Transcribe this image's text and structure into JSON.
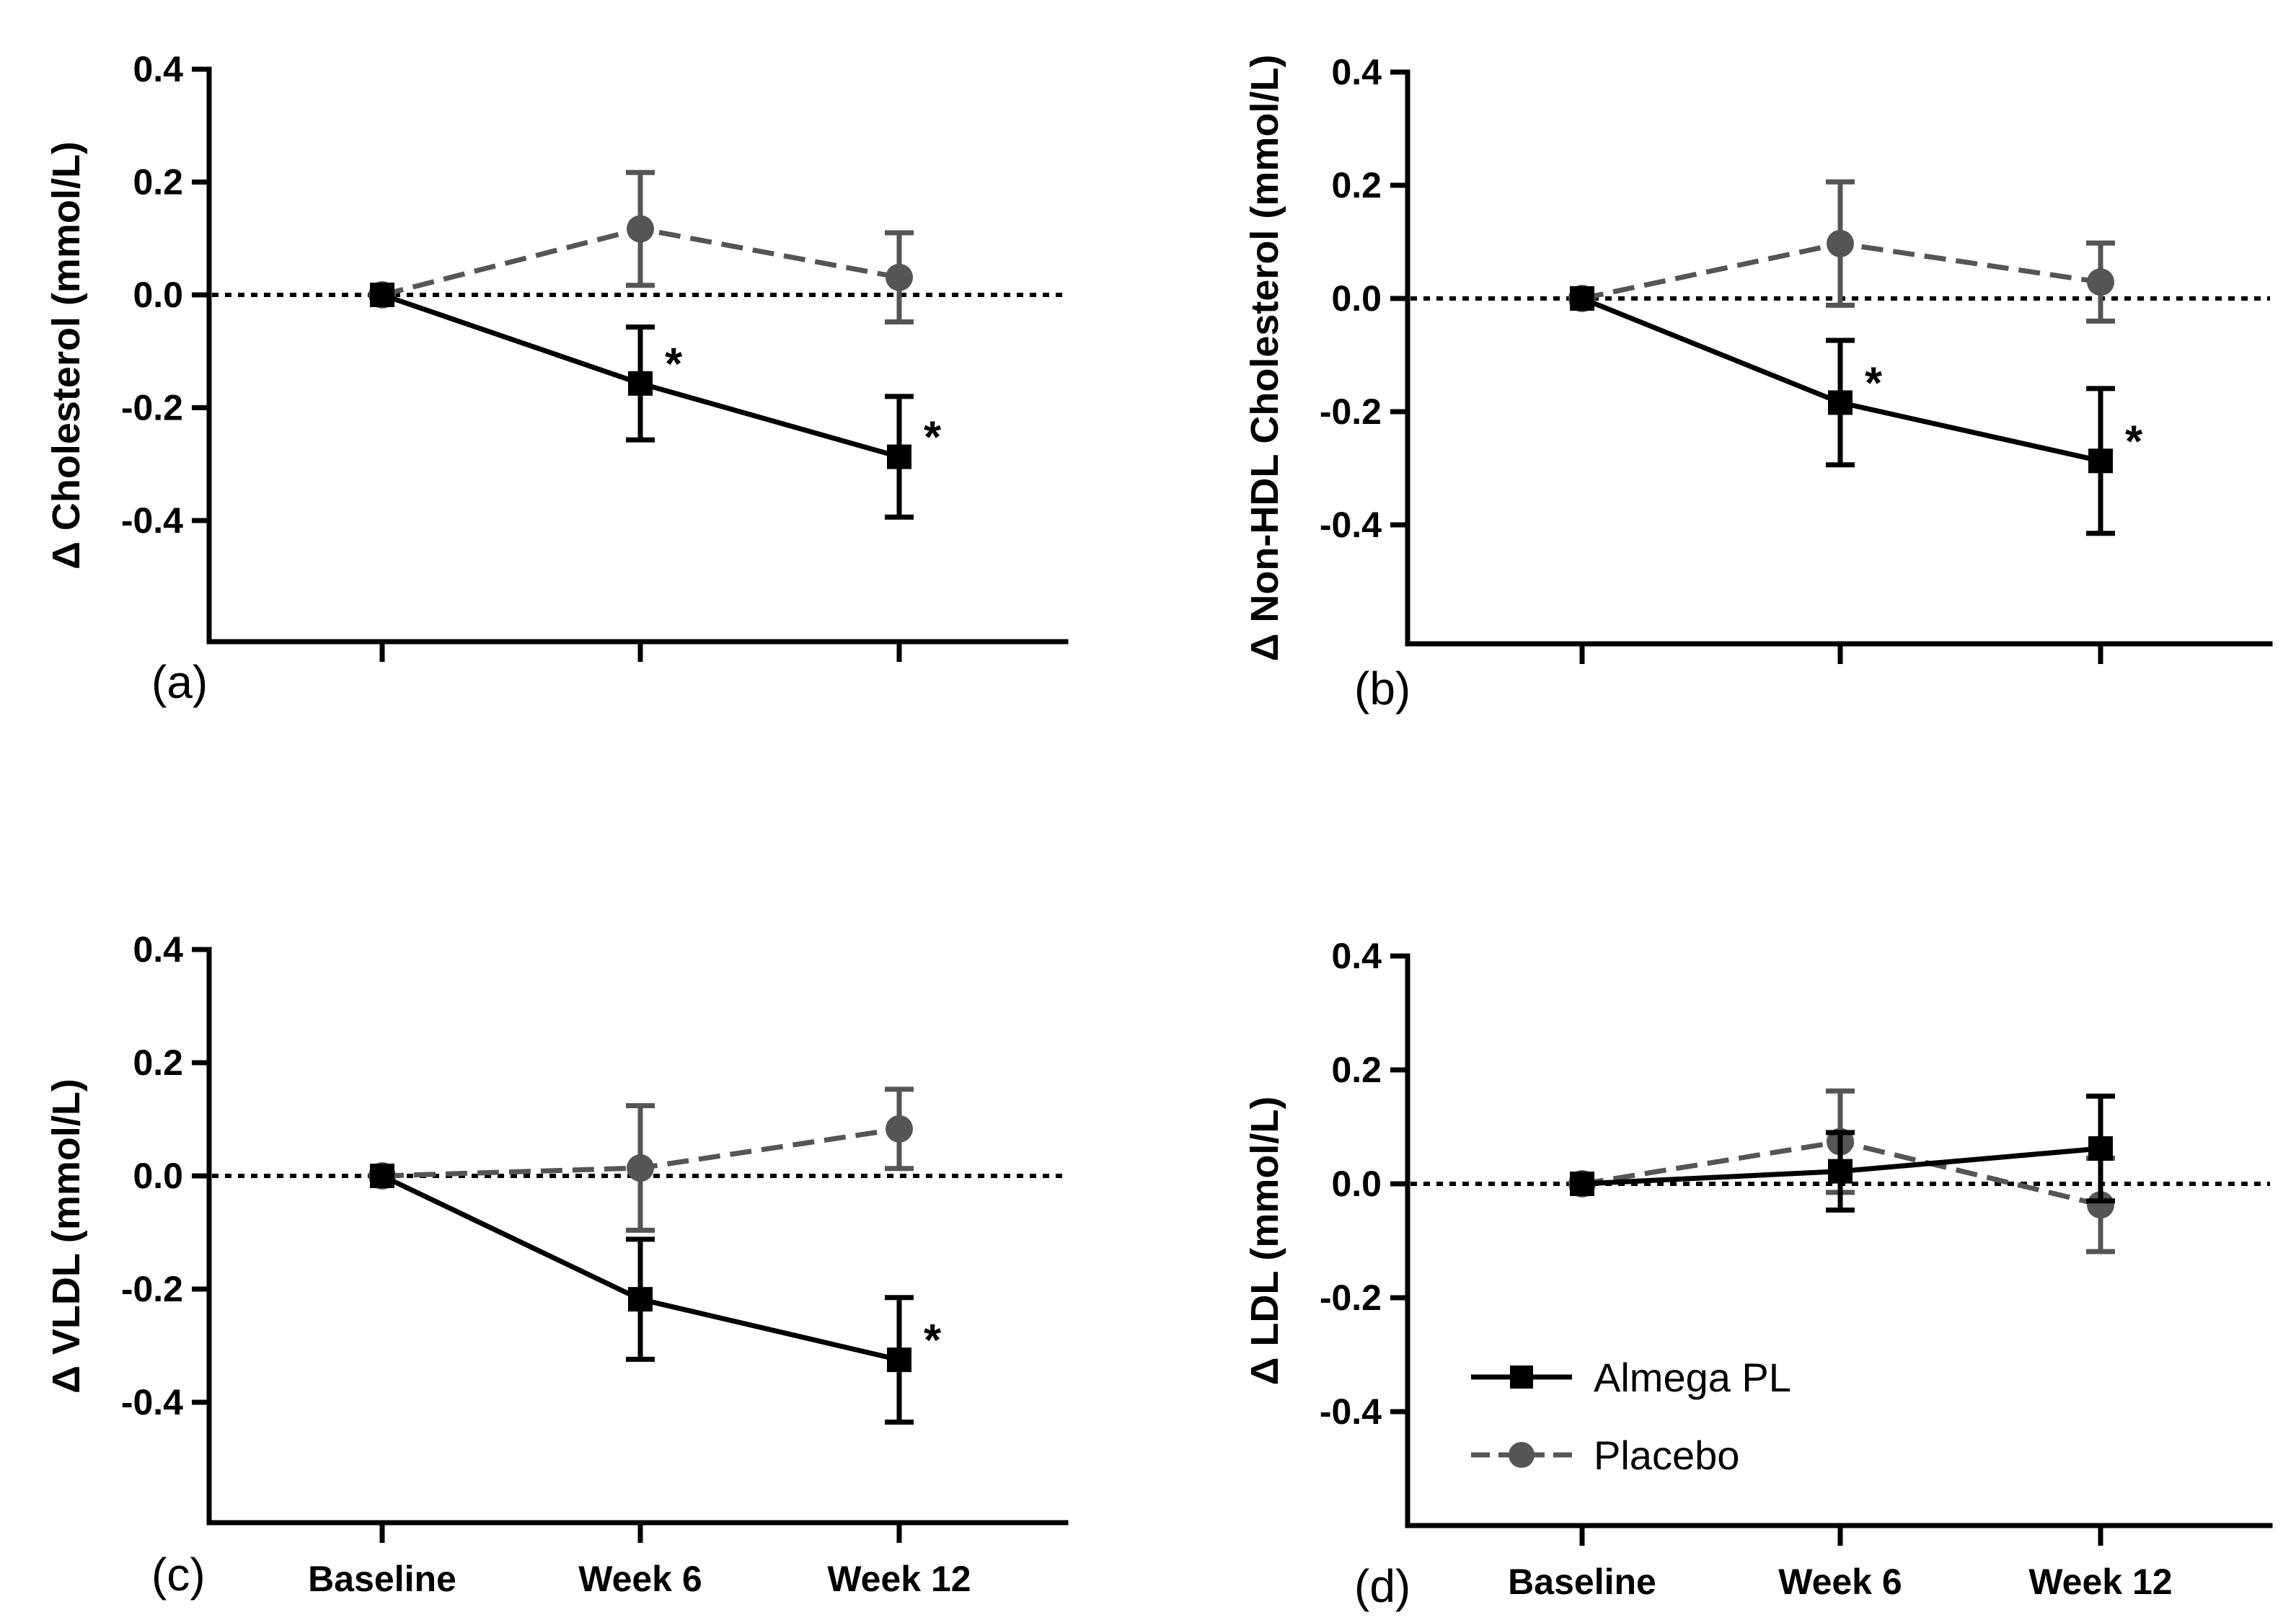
{
  "chart_data": [
    {
      "type": "line",
      "panel_label": "(a)",
      "ylabel": "Δ Cholesterol (mmol/L)",
      "xlabel": "",
      "categories": [
        "Baseline",
        "Week 6",
        "Week 12"
      ],
      "show_x_tick_labels": false,
      "yticks": [
        "0.4",
        "0.2",
        "0.0",
        "-0.2",
        "-0.4"
      ],
      "ylim": [
        -0.6,
        0.4
      ],
      "reference_line_y": 0.0,
      "series": [
        {
          "name": "Almega PL",
          "marker": "square",
          "line": "solid",
          "values": [
            0.0,
            -0.157,
            -0.287
          ],
          "error_bars": [
            0.0,
            0.1,
            0.107
          ],
          "significance": [
            "",
            "*",
            "*"
          ]
        },
        {
          "name": "Placebo",
          "marker": "circle",
          "line": "dashed",
          "values": [
            0.0,
            0.117,
            0.031
          ],
          "error_bars": [
            0.0,
            0.1,
            0.079
          ],
          "significance": [
            "",
            "",
            ""
          ]
        }
      ]
    },
    {
      "type": "line",
      "panel_label": "(b)",
      "ylabel": "Δ Non-HDL Cholesterol (mmol/L)",
      "xlabel": "",
      "categories": [
        "Baseline",
        "Week 6",
        "Week 12"
      ],
      "show_x_tick_labels": false,
      "yticks": [
        "0.4",
        "0.2",
        "0.0",
        "-0.2",
        "-0.4"
      ],
      "ylim": [
        -0.6,
        0.4
      ],
      "reference_line_y": 0.0,
      "series": [
        {
          "name": "Almega PL",
          "marker": "square",
          "line": "solid",
          "values": [
            0.0,
            -0.184,
            -0.287
          ],
          "error_bars": [
            0.0,
            0.11,
            0.128
          ],
          "significance": [
            "",
            "*",
            "*"
          ]
        },
        {
          "name": "Placebo",
          "marker": "circle",
          "line": "dashed",
          "values": [
            0.0,
            0.097,
            0.029
          ],
          "error_bars": [
            0.0,
            0.109,
            0.069
          ],
          "significance": [
            "",
            "",
            ""
          ]
        }
      ]
    },
    {
      "type": "line",
      "panel_label": "(c)",
      "ylabel": "Δ VLDL (mmol/L)",
      "xlabel": "",
      "categories": [
        "Baseline",
        "Week 6",
        "Week 12"
      ],
      "show_x_tick_labels": true,
      "yticks": [
        "0.4",
        "0.2",
        "0.0",
        "-0.2",
        "-0.4"
      ],
      "ylim": [
        -0.6,
        0.4
      ],
      "reference_line_y": 0.0,
      "series": [
        {
          "name": "Almega PL",
          "marker": "square",
          "line": "solid",
          "values": [
            0.0,
            -0.218,
            -0.325
          ],
          "error_bars": [
            0.0,
            0.106,
            0.11
          ],
          "significance": [
            "",
            "",
            "*"
          ]
        },
        {
          "name": "Placebo",
          "marker": "circle",
          "line": "dashed",
          "values": [
            0.0,
            0.014,
            0.083
          ],
          "error_bars": [
            0.0,
            0.11,
            0.07
          ],
          "significance": [
            "",
            "",
            ""
          ]
        }
      ]
    },
    {
      "type": "line",
      "panel_label": "(d)",
      "ylabel": "Δ LDL (mmol/L)",
      "xlabel": "",
      "categories": [
        "Baseline",
        "Week 6",
        "Week 12"
      ],
      "show_x_tick_labels": true,
      "yticks": [
        "0.4",
        "0.2",
        "0.0",
        "-0.2",
        "-0.4"
      ],
      "ylim": [
        -0.6,
        0.4
      ],
      "reference_line_y": 0.0,
      "legend": {
        "placement": "bottom-left",
        "entries": [
          "Almega PL",
          "Placebo"
        ]
      },
      "series": [
        {
          "name": "Almega PL",
          "marker": "square",
          "line": "solid",
          "values": [
            0.0,
            0.022,
            0.062
          ],
          "error_bars": [
            0.0,
            0.068,
            0.092
          ],
          "significance": [
            "",
            "",
            ""
          ]
        },
        {
          "name": "Placebo",
          "marker": "circle",
          "line": "dashed",
          "values": [
            0.0,
            0.074,
            -0.037
          ],
          "error_bars": [
            0.0,
            0.089,
            0.082
          ],
          "significance": [
            "",
            "",
            ""
          ]
        }
      ]
    }
  ],
  "colors": {
    "almega_pl": "#000000",
    "placebo": "#555555",
    "axis": "#000000",
    "background": "#ffffff"
  }
}
